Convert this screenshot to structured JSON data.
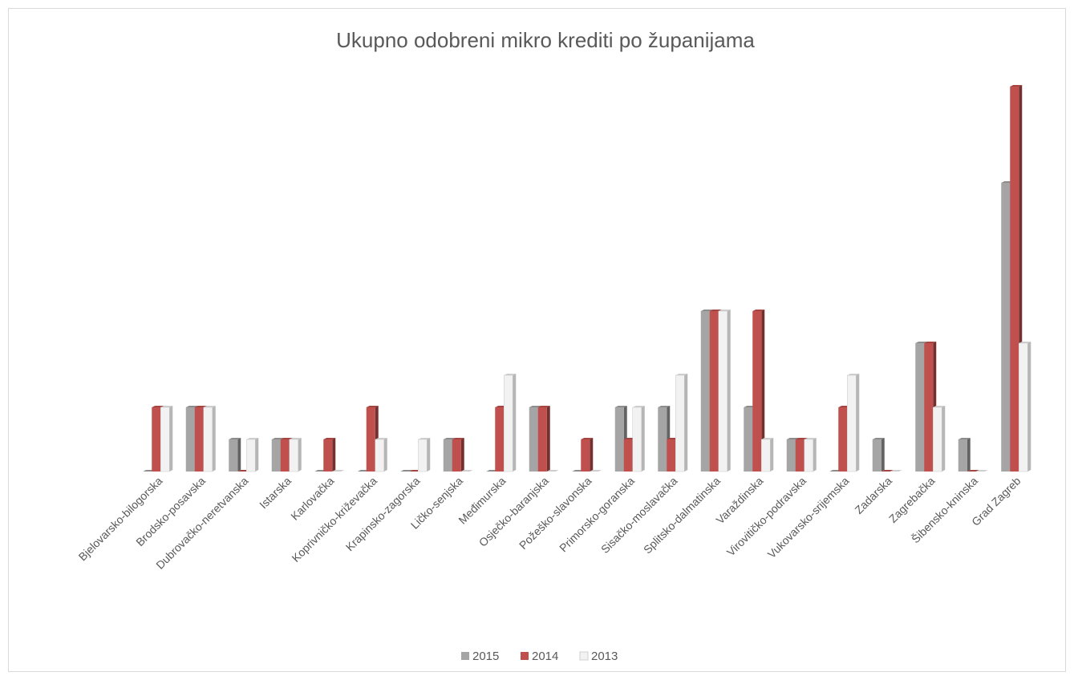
{
  "chart_data": {
    "type": "bar3d",
    "title": "Ukupno odobreni mikro krediti po županijama",
    "categories": [
      "Bjelovarsko-bilogorska",
      "Brodsko-posavska",
      "Dubrovačko-neretvanska",
      "Istarska",
      "Karlovačka",
      "Koprivničko-križevačka",
      "Krapinsko-zagorska",
      "Ličko-senjska",
      "Međimurska",
      "Osječko-baranjska",
      "Požeško-slavonska",
      "Primorsko-goranska",
      "Sisačko-moslavačka",
      "Splitsko-dalmatinska",
      "Varaždinska",
      "Virovitičko-podravska",
      "Vukovarsko-srijemska",
      "Zadarska",
      "Zagrebačka",
      "Šibensko-kninska",
      "Grad Zagreb"
    ],
    "series": [
      {
        "name": "2015",
        "color": "#a5a5a5",
        "values": [
          0,
          2,
          1,
          1,
          0,
          0,
          0,
          1,
          0,
          2,
          0,
          2,
          2,
          5,
          2,
          1,
          0,
          1,
          4,
          1,
          9
        ]
      },
      {
        "name": "2014",
        "color": "#c0504d",
        "values": [
          2,
          2,
          0,
          1,
          1,
          2,
          0,
          1,
          2,
          2,
          1,
          1,
          1,
          5,
          5,
          1,
          2,
          0,
          4,
          0,
          12
        ]
      },
      {
        "name": "2013",
        "color": "#f2f2f2",
        "values": [
          2,
          2,
          1,
          1,
          0,
          1,
          1,
          0,
          3,
          0,
          0,
          2,
          3,
          5,
          1,
          1,
          3,
          0,
          2,
          0,
          4
        ]
      }
    ],
    "legend": "bottom"
  }
}
